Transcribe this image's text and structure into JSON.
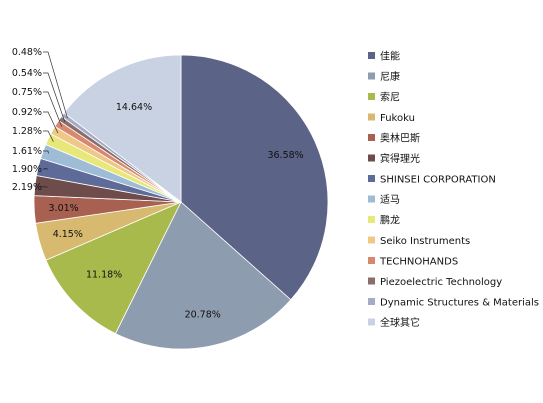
{
  "chart_data": {
    "type": "pie",
    "title": "",
    "legend_position": "right",
    "slices": [
      {
        "label": "佳能",
        "value": 36.58,
        "value_label": "36.58%",
        "color": "#5b6386"
      },
      {
        "label": "尼康",
        "value": 20.78,
        "value_label": "20.78%",
        "color": "#8e9cb0"
      },
      {
        "label": "索尼",
        "value": 11.18,
        "value_label": "11.18%",
        "color": "#a8ba4c"
      },
      {
        "label": "Fukoku",
        "value": 4.15,
        "value_label": "4.15%",
        "color": "#d7ba6f"
      },
      {
        "label": "奥林巴斯",
        "value": 3.01,
        "value_label": "3.01%",
        "color": "#a86050"
      },
      {
        "label": "宾得理光",
        "value": 2.19,
        "value_label": "2.19%",
        "color": "#6d4c4b"
      },
      {
        "label": "SHINSEI CORPORATION",
        "value": 1.9,
        "value_label": "1.90%",
        "color": "#5e6a98"
      },
      {
        "label": "适马",
        "value": 1.61,
        "value_label": "1.61%",
        "color": "#9fbcd6"
      },
      {
        "label": "鹏龙",
        "value": 1.28,
        "value_label": "1.28%",
        "color": "#e8e87a"
      },
      {
        "label": "Seiko Instruments",
        "value": 0.92,
        "value_label": "0.92%",
        "color": "#efc887"
      },
      {
        "label": "TECHNOHANDS",
        "value": 0.75,
        "value_label": "0.75%",
        "color": "#d9876e"
      },
      {
        "label": "Piezoelectric Technology",
        "value": 0.54,
        "value_label": "0.54%",
        "color": "#8a6e6a"
      },
      {
        "label": "Dynamic Structures & Materials",
        "value": 0.48,
        "value_label": "0.48%",
        "color": "#a5abc7"
      },
      {
        "label": "全球其它",
        "value": 14.64,
        "value_label": "14.64%",
        "color": "#c9d2e2"
      }
    ]
  }
}
